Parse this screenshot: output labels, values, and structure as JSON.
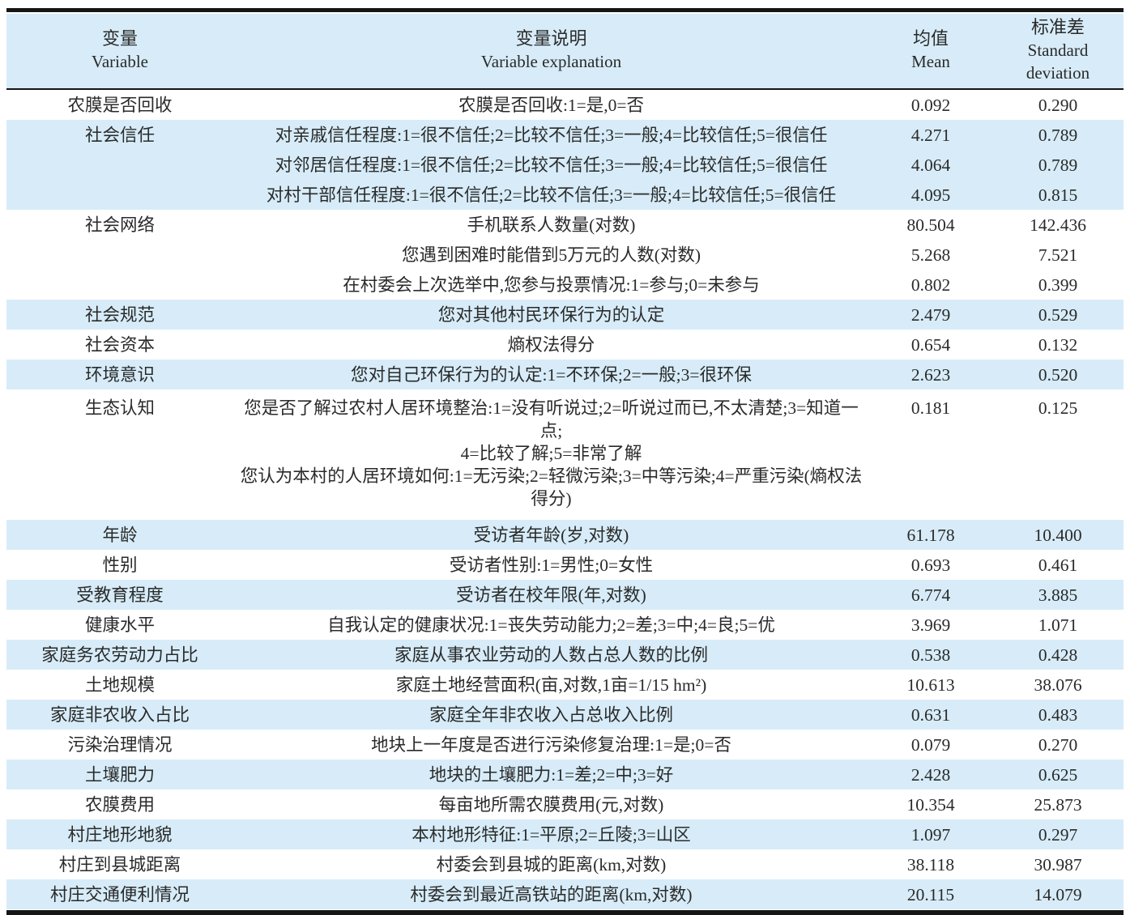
{
  "colors": {
    "band_blue": "#d7ecf8",
    "rule": "#161616",
    "text": "#2a2a2a"
  },
  "header": {
    "variable_zh": "变量",
    "variable_en": "Variable",
    "explanation_zh": "变量说明",
    "explanation_en": "Variable explanation",
    "mean_zh": "均值",
    "mean_en": "Mean",
    "sd_zh": "标准差",
    "sd_en": "Standard deviation"
  },
  "table": {
    "rows": [
      {
        "variable": "农膜是否回收",
        "lines": [
          "农膜是否回收:1=是,0=否"
        ],
        "mean": "0.092",
        "sd": "0.290",
        "band": "white"
      },
      {
        "variable": "社会信任",
        "lines": [
          "对亲戚信任程度:1=很不信任;2=比较不信任;3=一般;4=比较信任;5=很信任"
        ],
        "mean": "4.271",
        "sd": "0.789",
        "band": "blue"
      },
      {
        "variable": "",
        "lines": [
          "对邻居信任程度:1=很不信任;2=比较不信任;3=一般;4=比较信任;5=很信任"
        ],
        "mean": "4.064",
        "sd": "0.789",
        "band": "blue"
      },
      {
        "variable": "",
        "lines": [
          "对村干部信任程度:1=很不信任;2=比较不信任;3=一般;4=比较信任;5=很信任"
        ],
        "mean": "4.095",
        "sd": "0.815",
        "band": "blue"
      },
      {
        "variable": "社会网络",
        "lines": [
          "手机联系人数量(对数)"
        ],
        "mean": "80.504",
        "sd": "142.436",
        "band": "white"
      },
      {
        "variable": "",
        "lines": [
          "您遇到困难时能借到5万元的人数(对数)"
        ],
        "mean": "5.268",
        "sd": "7.521",
        "band": "white"
      },
      {
        "variable": "",
        "lines": [
          "在村委会上次选举中,您参与投票情况:1=参与;0=未参与"
        ],
        "mean": "0.802",
        "sd": "0.399",
        "band": "white"
      },
      {
        "variable": "社会规范",
        "lines": [
          "您对其他村民环保行为的认定"
        ],
        "mean": "2.479",
        "sd": "0.529",
        "band": "blue"
      },
      {
        "variable": "社会资本",
        "lines": [
          "熵权法得分"
        ],
        "mean": "0.654",
        "sd": "0.132",
        "band": "white"
      },
      {
        "variable": "环境意识",
        "lines": [
          "您对自己环保行为的认定:1=不环保;2=一般;3=很环保"
        ],
        "mean": "2.623",
        "sd": "0.520",
        "band": "blue"
      },
      {
        "variable": "生态认知",
        "lines": [
          "您是否了解过农村人居环境整治:1=没有听说过;2=听说过而已,不太清楚;3=知道一点;",
          "4=比较了解;5=非常了解",
          "您认为本村的人居环境如何:1=无污染;2=轻微污染;3=中等污染;4=严重污染(熵权法得分)"
        ],
        "mean": "0.181",
        "sd": "0.125",
        "band": "white"
      },
      {
        "variable": "年龄",
        "lines": [
          "受访者年龄(岁,对数)"
        ],
        "mean": "61.178",
        "sd": "10.400",
        "band": "blue"
      },
      {
        "variable": "性别",
        "lines": [
          "受访者性别:1=男性;0=女性"
        ],
        "mean": "0.693",
        "sd": "0.461",
        "band": "white"
      },
      {
        "variable": "受教育程度",
        "lines": [
          "受访者在校年限(年,对数)"
        ],
        "mean": "6.774",
        "sd": "3.885",
        "band": "blue"
      },
      {
        "variable": "健康水平",
        "lines": [
          "自我认定的健康状况:1=丧失劳动能力;2=差;3=中;4=良;5=优"
        ],
        "mean": "3.969",
        "sd": "1.071",
        "band": "white"
      },
      {
        "variable": "家庭务农劳动力占比",
        "lines": [
          "家庭从事农业劳动的人数占总人数的比例"
        ],
        "mean": "0.538",
        "sd": "0.428",
        "band": "blue"
      },
      {
        "variable": "土地规模",
        "lines": [
          "家庭土地经营面积(亩,对数,1亩=1/15 hm²)"
        ],
        "mean": "10.613",
        "sd": "38.076",
        "band": "white"
      },
      {
        "variable": "家庭非农收入占比",
        "lines": [
          "家庭全年非农收入占总收入比例"
        ],
        "mean": "0.631",
        "sd": "0.483",
        "band": "blue"
      },
      {
        "variable": "污染治理情况",
        "lines": [
          "地块上一年度是否进行污染修复治理:1=是;0=否"
        ],
        "mean": "0.079",
        "sd": "0.270",
        "band": "white"
      },
      {
        "variable": "土壤肥力",
        "lines": [
          "地块的土壤肥力:1=差;2=中;3=好"
        ],
        "mean": "2.428",
        "sd": "0.625",
        "band": "blue"
      },
      {
        "variable": "农膜费用",
        "lines": [
          "每亩地所需农膜费用(元,对数)"
        ],
        "mean": "10.354",
        "sd": "25.873",
        "band": "white"
      },
      {
        "variable": "村庄地形地貌",
        "lines": [
          "本村地形特征:1=平原;2=丘陵;3=山区"
        ],
        "mean": "1.097",
        "sd": "0.297",
        "band": "blue"
      },
      {
        "variable": "村庄到县城距离",
        "lines": [
          "村委会到县城的距离(km,对数)"
        ],
        "mean": "38.118",
        "sd": "30.987",
        "band": "white"
      },
      {
        "variable": "村庄交通便利情况",
        "lines": [
          "村委会到最近高铁站的距离(km,对数)"
        ],
        "mean": "20.115",
        "sd": "14.079",
        "band": "blue"
      }
    ]
  }
}
